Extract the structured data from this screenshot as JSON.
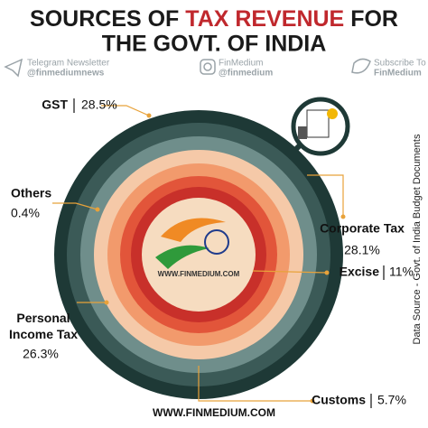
{
  "title": {
    "line1_start": "SOURCES OF",
    "line1_highlight": "TAX REVENUE",
    "line1_end": "FOR",
    "line2": "THE GOVT. OF INDIA"
  },
  "social": [
    {
      "top": "Telegram Newsletter",
      "bottom": "@finmediumnews"
    },
    {
      "top": "FinMedium",
      "bottom": "@finmedium"
    },
    {
      "top": "Subscribe To",
      "bottom": "FinMedium"
    }
  ],
  "chart_data": {
    "type": "rings",
    "categories": [
      "GST",
      "Others",
      "Corporate Tax",
      "Excise",
      "Customs",
      "Personal Income Tax"
    ],
    "values": [
      28.5,
      0.4,
      28.1,
      11,
      5.7,
      26.3
    ],
    "value_labels": [
      "28.5%",
      "0.4%",
      "28.1%",
      "11%",
      "5.7%",
      "26.3%"
    ],
    "colors": [
      "#1e3936",
      "#3b5a57",
      "#6f8e8b",
      "#f5c9a8",
      "#f29a6c",
      "#e2553a"
    ]
  },
  "logo_text": "WWW.FINMEDIUM.COM",
  "source": "Data Source - Govt. of India Budget Documents",
  "footer": "WWW.FINMEDIUM.COM"
}
